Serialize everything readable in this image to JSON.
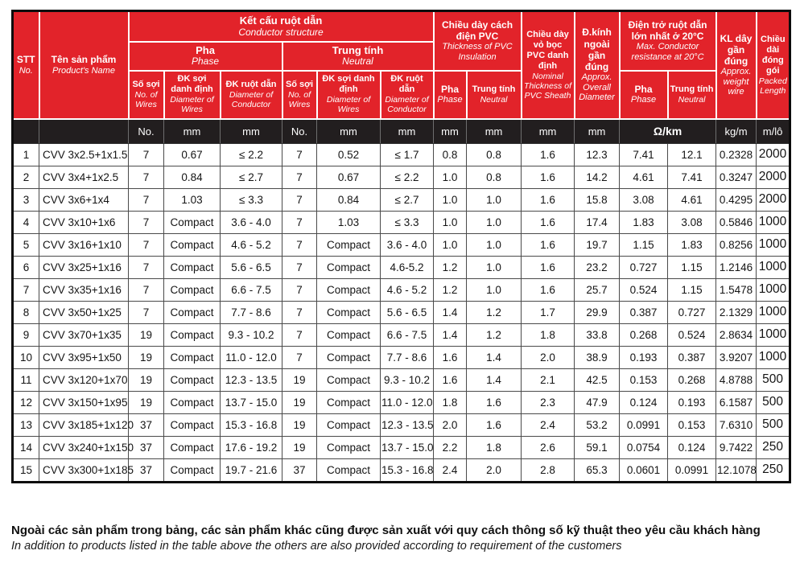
{
  "colors": {
    "header_red": "#e2232a",
    "units_black": "#221e1f",
    "grid_gray": "#4a4a4a"
  },
  "table": {
    "header": {
      "stt": {
        "vi": "STT",
        "en": "No."
      },
      "product": {
        "vi": "Tên sản phẩm",
        "en": "Product's Name"
      },
      "conductor": {
        "vi": "Kết cấu ruột dẫn",
        "en": "Conductor structure"
      },
      "phase": {
        "vi": "Pha",
        "en": "Phase"
      },
      "neutral": {
        "vi": "Trung tính",
        "en": "Neutral"
      },
      "wires": {
        "vi": "Số sợi",
        "en": "No. of Wires"
      },
      "wire_dia": {
        "vi": "ĐK sợi danh định",
        "en": "Diameter of Wires"
      },
      "cond_dia": {
        "vi": "ĐK ruột dẫn",
        "en": "Diameter of Conductor"
      },
      "insulation": {
        "vi": "Chiều dày cách điện PVC",
        "en": "Thickness of PVC Insulation"
      },
      "sheath": {
        "vi": "Chiều dày vỏ bọc PVC danh định",
        "en": "Nominal Thickness of PVC Sheath"
      },
      "overall": {
        "vi": "Đ.kính ngoài gần đúng",
        "en": "Approx. Overall Diameter"
      },
      "resistance": {
        "vi": "Điện trở ruột dẫn lớn nhất ở 20°C",
        "en": "Max. Conductor resistance at 20°C"
      },
      "weight": {
        "vi": "KL dây gần đúng",
        "en": "Approx. weight wire"
      },
      "length": {
        "vi": "Chiều dài đóng gói",
        "en": "Packed Length"
      }
    },
    "units": [
      "",
      "",
      "No.",
      "mm",
      "mm",
      "No.",
      "mm",
      "mm",
      "mm",
      "mm",
      "mm",
      "mm",
      "Ω/km",
      "kg/m",
      "m/lô"
    ],
    "rows": [
      [
        "1",
        "CVV 3x2.5+1x1.5",
        "7",
        "0.67",
        "≤ 2.2",
        "7",
        "0.52",
        "≤ 1.7",
        "0.8",
        "0.8",
        "1.6",
        "12.3",
        "7.41",
        "12.1",
        "0.2328",
        "2000"
      ],
      [
        "2",
        "CVV 3x4+1x2.5",
        "7",
        "0.84",
        "≤ 2.7",
        "7",
        "0.67",
        "≤ 2.2",
        "1.0",
        "0.8",
        "1.6",
        "14.2",
        "4.61",
        "7.41",
        "0.3247",
        "2000"
      ],
      [
        "3",
        "CVV 3x6+1x4",
        "7",
        "1.03",
        "≤ 3.3",
        "7",
        "0.84",
        "≤ 2.7",
        "1.0",
        "1.0",
        "1.6",
        "15.8",
        "3.08",
        "4.61",
        "0.4295",
        "2000"
      ],
      [
        "4",
        "CVV 3x10+1x6",
        "7",
        "Compact",
        "3.6 - 4.0",
        "7",
        "1.03",
        "≤ 3.3",
        "1.0",
        "1.0",
        "1.6",
        "17.4",
        "1.83",
        "3.08",
        "0.5846",
        "1000"
      ],
      [
        "5",
        "CVV 3x16+1x10",
        "7",
        "Compact",
        "4.6 - 5.2",
        "7",
        "Compact",
        "3.6 - 4.0",
        "1.0",
        "1.0",
        "1.6",
        "19.7",
        "1.15",
        "1.83",
        "0.8256",
        "1000"
      ],
      [
        "6",
        "CVV 3x25+1x16",
        "7",
        "Compact",
        "5.6 - 6.5",
        "7",
        "Compact",
        "4.6-5.2",
        "1.2",
        "1.0",
        "1.6",
        "23.2",
        "0.727",
        "1.15",
        "1.2146",
        "1000"
      ],
      [
        "7",
        "CVV 3x35+1x16",
        "7",
        "Compact",
        "6.6 - 7.5",
        "7",
        "Compact",
        "4.6 - 5.2",
        "1.2",
        "1.0",
        "1.6",
        "25.7",
        "0.524",
        "1.15",
        "1.5478",
        "1000"
      ],
      [
        "8",
        "CVV 3x50+1x25",
        "7",
        "Compact",
        "7.7 - 8.6",
        "7",
        "Compact",
        "5.6 - 6.5",
        "1.4",
        "1.2",
        "1.7",
        "29.9",
        "0.387",
        "0.727",
        "2.1329",
        "1000"
      ],
      [
        "9",
        "CVV 3x70+1x35",
        "19",
        "Compact",
        "9.3 - 10.2",
        "7",
        "Compact",
        "6.6 - 7.5",
        "1.4",
        "1.2",
        "1.8",
        "33.8",
        "0.268",
        "0.524",
        "2.8634",
        "1000"
      ],
      [
        "10",
        "CVV 3x95+1x50",
        "19",
        "Compact",
        "11.0 - 12.0",
        "7",
        "Compact",
        "7.7 - 8.6",
        "1.6",
        "1.4",
        "2.0",
        "38.9",
        "0.193",
        "0.387",
        "3.9207",
        "1000"
      ],
      [
        "11",
        "CVV 3x120+1x70",
        "19",
        "Compact",
        "12.3 - 13.5",
        "19",
        "Compact",
        "9.3 - 10.2",
        "1.6",
        "1.4",
        "2.1",
        "42.5",
        "0.153",
        "0.268",
        "4.8788",
        "500"
      ],
      [
        "12",
        "CVV 3x150+1x95",
        "19",
        "Compact",
        "13.7 - 15.0",
        "19",
        "Compact",
        "11.0 - 12.0",
        "1.8",
        "1.6",
        "2.3",
        "47.9",
        "0.124",
        "0.193",
        "6.1587",
        "500"
      ],
      [
        "13",
        "CVV 3x185+1x120",
        "37",
        "Compact",
        "15.3 - 16.8",
        "19",
        "Compact",
        "12.3 - 13.5",
        "2.0",
        "1.6",
        "2.4",
        "53.2",
        "0.0991",
        "0.153",
        "7.6310",
        "500"
      ],
      [
        "14",
        "CVV 3x240+1x150",
        "37",
        "Compact",
        "17.6 - 19.2",
        "19",
        "Compact",
        "13.7 - 15.0",
        "2.2",
        "1.8",
        "2.6",
        "59.1",
        "0.0754",
        "0.124",
        "9.7422",
        "250"
      ],
      [
        "15",
        "CVV 3x300+1x185",
        "37",
        "Compact",
        "19.7 - 21.6",
        "37",
        "Compact",
        "15.3 - 16.8",
        "2.4",
        "2.0",
        "2.8",
        "65.3",
        "0.0601",
        "0.0991",
        "12.1078",
        "250"
      ]
    ]
  },
  "footer": {
    "vi": "Ngoài các sản phẩm trong bảng, các sản phẩm khác cũng được sản xuất với quy cách thông số kỹ thuật  theo yêu cầu khách hàng",
    "en": "In addition to products listed in the table above the others are also provided according to requirement of the customers"
  }
}
